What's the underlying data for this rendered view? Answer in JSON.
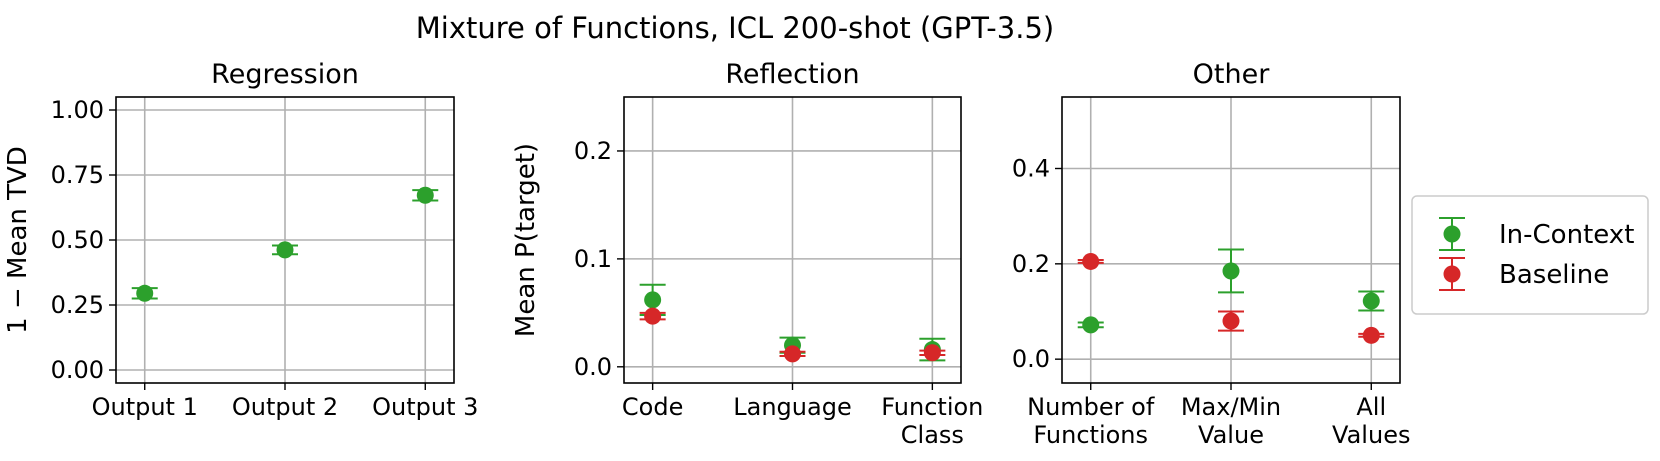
{
  "title": "Mixture of Functions, ICL 200-shot (GPT-3.5)",
  "legend": {
    "placement": "right",
    "entries": [
      {
        "name": "In-Context",
        "color": "#2ca02c"
      },
      {
        "name": "Baseline",
        "color": "#d62728"
      }
    ]
  },
  "chart_data": [
    {
      "type": "scatter",
      "subtitle": "Regression",
      "ylabel": "1 −  Mean TVD",
      "xlabel": "",
      "ylim": [
        -0.05,
        1.05
      ],
      "yticks": [
        "0.00",
        "0.25",
        "0.50",
        "0.75",
        "1.00"
      ],
      "grid": true,
      "categories": [
        [
          "Output 1"
        ],
        [
          "Output 2"
        ],
        [
          "Output 3"
        ]
      ],
      "series": [
        {
          "name": "In-Context",
          "color": "#2ca02c",
          "values": [
            0.295,
            0.462,
            0.672
          ],
          "errors": [
            0.02,
            0.017,
            0.02
          ]
        }
      ]
    },
    {
      "type": "scatter",
      "subtitle": "Reflection",
      "ylabel": "Mean P(target)",
      "xlabel": "",
      "ylim": [
        -0.015,
        0.25
      ],
      "yticks": [
        "0.0",
        "0.1",
        "0.2"
      ],
      "grid": true,
      "categories": [
        [
          "Code"
        ],
        [
          "Language"
        ],
        [
          "Function",
          "Class"
        ]
      ],
      "series": [
        {
          "name": "In-Context",
          "color": "#2ca02c",
          "values": [
            0.062,
            0.02,
            0.016
          ],
          "errors": [
            0.014,
            0.007,
            0.01
          ]
        },
        {
          "name": "Baseline",
          "color": "#d62728",
          "values": [
            0.047,
            0.012,
            0.013
          ],
          "errors": [
            0.003,
            0.002,
            0.002
          ]
        }
      ]
    },
    {
      "type": "scatter",
      "subtitle": "Other",
      "ylabel": "",
      "xlabel": "",
      "ylim": [
        -0.05,
        0.55
      ],
      "yticks": [
        "0.0",
        "0.2",
        "0.4"
      ],
      "grid": true,
      "categories": [
        [
          "Number of",
          "Functions"
        ],
        [
          "Max/Min",
          "Value"
        ],
        [
          "All",
          "Values"
        ]
      ],
      "series": [
        {
          "name": "In-Context",
          "color": "#2ca02c",
          "values": [
            0.072,
            0.185,
            0.122
          ],
          "errors": [
            0.005,
            0.045,
            0.02
          ]
        },
        {
          "name": "Baseline",
          "color": "#d62728",
          "values": [
            0.205,
            0.08,
            0.05
          ],
          "errors": [
            0.003,
            0.02,
            0.003
          ]
        }
      ]
    }
  ]
}
